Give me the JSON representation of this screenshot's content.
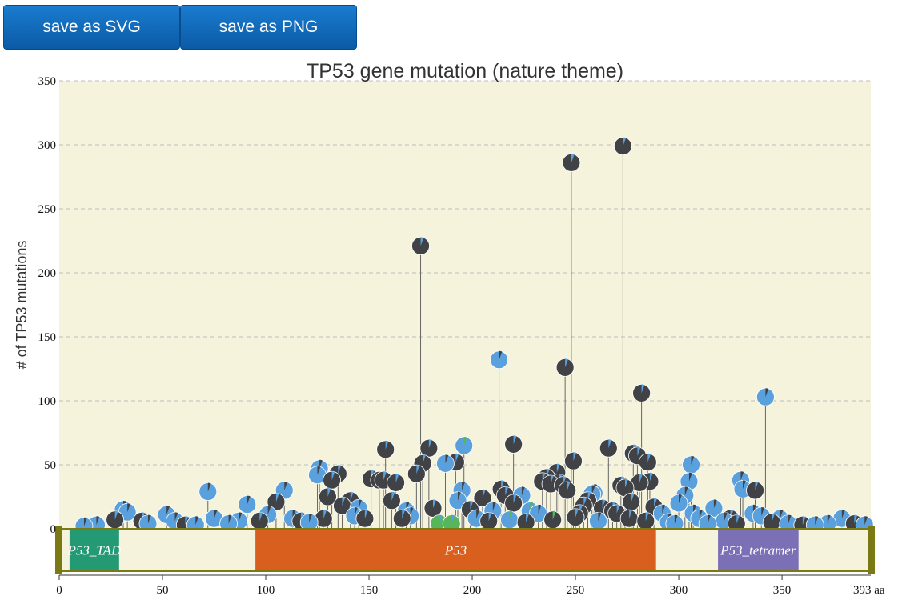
{
  "toolbar": {
    "save_svg_label": "save as SVG",
    "save_png_label": "save as PNG"
  },
  "colors": {
    "plot_background": "#f5f3dc",
    "grid": "#bdbdbd",
    "stem": "#666666",
    "lollipop_dark": "#414246",
    "lollipop_blue": "#5aa0dc",
    "lollipop_green": "#57b55b",
    "track_border": "#7a7a14",
    "track_fill": "#f5f3dc"
  },
  "chart_data": {
    "type": "lollipop",
    "title": "TP53 gene mutation (nature theme)",
    "ylabel": "# of TP53 mutations",
    "xlabel": "",
    "x_unit_label": "393 aa",
    "ylim": [
      0,
      350
    ],
    "xlim": [
      0,
      393
    ],
    "y_ticks": [
      "0",
      "50",
      "100",
      "150",
      "200",
      "250",
      "300",
      "350"
    ],
    "x_ticks": [
      "0",
      "50",
      "100",
      "150",
      "200",
      "250",
      "300",
      "350"
    ],
    "grid": true,
    "domains": [
      {
        "name": "P53_TAD",
        "start": 5,
        "end": 29,
        "color": "#239a74"
      },
      {
        "name": "P53",
        "start": 95,
        "end": 289,
        "color": "#d95f1e"
      },
      {
        "name": "P53_tetramer",
        "start": 319,
        "end": 358,
        "color": "#7b6fb5"
      }
    ],
    "mutations": [
      {
        "pos": 175,
        "count": 221,
        "color": "dark",
        "accent": "blue"
      },
      {
        "pos": 248,
        "count": 286,
        "color": "dark",
        "accent": "blue"
      },
      {
        "pos": 273,
        "count": 299,
        "color": "dark",
        "accent": "blue"
      },
      {
        "pos": 213,
        "count": 132,
        "color": "blue",
        "accent": "dark"
      },
      {
        "pos": 245,
        "count": 126,
        "color": "dark",
        "accent": "blue"
      },
      {
        "pos": 282,
        "count": 106,
        "color": "dark",
        "accent": "blue"
      },
      {
        "pos": 342,
        "count": 103,
        "color": "blue",
        "accent": "dark"
      },
      {
        "pos": 158,
        "count": 62,
        "color": "dark",
        "accent": "blue"
      },
      {
        "pos": 179,
        "count": 63,
        "color": "dark",
        "accent": "blue"
      },
      {
        "pos": 196,
        "count": 65,
        "color": "blue",
        "accent": "green"
      },
      {
        "pos": 220,
        "count": 66,
        "color": "dark",
        "accent": "blue"
      },
      {
        "pos": 266,
        "count": 63,
        "color": "dark",
        "accent": "blue"
      },
      {
        "pos": 249,
        "count": 53,
        "color": "dark",
        "accent": "blue"
      },
      {
        "pos": 176,
        "count": 51,
        "color": "dark",
        "accent": "blue"
      },
      {
        "pos": 187,
        "count": 51,
        "color": "blue",
        "accent": "dark"
      },
      {
        "pos": 192,
        "count": 52,
        "color": "dark",
        "accent": "blue"
      },
      {
        "pos": 278,
        "count": 59,
        "color": "dark",
        "accent": "blue"
      },
      {
        "pos": 280,
        "count": 57,
        "color": "dark",
        "accent": "blue"
      },
      {
        "pos": 285,
        "count": 52,
        "color": "dark",
        "accent": "blue"
      },
      {
        "pos": 306,
        "count": 50,
        "color": "blue",
        "accent": "dark"
      },
      {
        "pos": 126,
        "count": 47,
        "color": "blue",
        "accent": "dark"
      },
      {
        "pos": 125,
        "count": 42,
        "color": "blue",
        "accent": "dark"
      },
      {
        "pos": 132,
        "count": 38,
        "color": "dark",
        "accent": "blue"
      },
      {
        "pos": 135,
        "count": 43,
        "color": "dark",
        "accent": "blue"
      },
      {
        "pos": 141,
        "count": 22,
        "color": "dark",
        "accent": "blue"
      },
      {
        "pos": 151,
        "count": 39,
        "color": "dark",
        "accent": "blue"
      },
      {
        "pos": 155,
        "count": 38,
        "color": "dark",
        "accent": "blue"
      },
      {
        "pos": 157,
        "count": 38,
        "color": "dark",
        "accent": "blue"
      },
      {
        "pos": 163,
        "count": 36,
        "color": "dark",
        "accent": "blue"
      },
      {
        "pos": 173,
        "count": 43,
        "color": "dark",
        "accent": "blue"
      },
      {
        "pos": 193,
        "count": 22,
        "color": "blue",
        "accent": "dark"
      },
      {
        "pos": 195,
        "count": 30,
        "color": "blue",
        "accent": "dark"
      },
      {
        "pos": 205,
        "count": 24,
        "color": "dark",
        "accent": "blue"
      },
      {
        "pos": 214,
        "count": 31,
        "color": "dark",
        "accent": "blue"
      },
      {
        "pos": 216,
        "count": 26,
        "color": "dark",
        "accent": "blue"
      },
      {
        "pos": 220,
        "count": 20,
        "color": "dark",
        "accent": "blue"
      },
      {
        "pos": 224,
        "count": 26,
        "color": "blue",
        "accent": "dark"
      },
      {
        "pos": 234,
        "count": 37,
        "color": "dark",
        "accent": "blue"
      },
      {
        "pos": 236,
        "count": 40,
        "color": "dark",
        "accent": "blue"
      },
      {
        "pos": 238,
        "count": 35,
        "color": "dark",
        "accent": "blue"
      },
      {
        "pos": 241,
        "count": 44,
        "color": "dark",
        "accent": "blue"
      },
      {
        "pos": 242,
        "count": 36,
        "color": "dark",
        "accent": "blue"
      },
      {
        "pos": 244,
        "count": 34,
        "color": "dark",
        "accent": "blue"
      },
      {
        "pos": 246,
        "count": 30,
        "color": "dark",
        "accent": "blue"
      },
      {
        "pos": 258,
        "count": 27,
        "color": "blue",
        "accent": "dark"
      },
      {
        "pos": 259,
        "count": 28,
        "color": "blue",
        "accent": "dark"
      },
      {
        "pos": 272,
        "count": 34,
        "color": "dark",
        "accent": "blue"
      },
      {
        "pos": 274,
        "count": 32,
        "color": "dark",
        "accent": "blue"
      },
      {
        "pos": 277,
        "count": 21,
        "color": "dark",
        "accent": "blue"
      },
      {
        "pos": 281,
        "count": 36,
        "color": "dark",
        "accent": "blue"
      },
      {
        "pos": 286,
        "count": 37,
        "color": "dark",
        "accent": "blue"
      },
      {
        "pos": 288,
        "count": 17,
        "color": "dark",
        "accent": "blue"
      },
      {
        "pos": 300,
        "count": 20,
        "color": "blue",
        "accent": "dark"
      },
      {
        "pos": 303,
        "count": 26,
        "color": "blue",
        "accent": "dark"
      },
      {
        "pos": 305,
        "count": 37,
        "color": "blue",
        "accent": "dark"
      },
      {
        "pos": 307,
        "count": 12,
        "color": "blue",
        "accent": "dark"
      },
      {
        "pos": 317,
        "count": 16,
        "color": "blue",
        "accent": "dark"
      },
      {
        "pos": 330,
        "count": 38,
        "color": "blue",
        "accent": "dark"
      },
      {
        "pos": 331,
        "count": 31,
        "color": "blue",
        "accent": "dark"
      },
      {
        "pos": 337,
        "count": 30,
        "color": "dark",
        "accent": "blue"
      },
      {
        "pos": 72,
        "count": 29,
        "color": "blue",
        "accent": "dark"
      },
      {
        "pos": 109,
        "count": 30,
        "color": "blue",
        "accent": "dark"
      },
      {
        "pos": 105,
        "count": 21,
        "color": "dark",
        "accent": "blue"
      },
      {
        "pos": 91,
        "count": 19,
        "color": "blue",
        "accent": "dark"
      },
      {
        "pos": 130,
        "count": 25,
        "color": "dark",
        "accent": "blue"
      },
      {
        "pos": 137,
        "count": 18,
        "color": "dark",
        "accent": "blue"
      },
      {
        "pos": 145,
        "count": 16,
        "color": "blue",
        "accent": "dark"
      },
      {
        "pos": 161,
        "count": 22,
        "color": "dark",
        "accent": "blue"
      },
      {
        "pos": 168,
        "count": 14,
        "color": "blue",
        "accent": "dark"
      },
      {
        "pos": 181,
        "count": 16,
        "color": "dark",
        "accent": "blue"
      },
      {
        "pos": 199,
        "count": 15,
        "color": "dark",
        "accent": "blue"
      },
      {
        "pos": 210,
        "count": 14,
        "color": "blue",
        "accent": "dark"
      },
      {
        "pos": 228,
        "count": 14,
        "color": "blue",
        "accent": "green"
      },
      {
        "pos": 232,
        "count": 12,
        "color": "blue",
        "accent": "dark"
      },
      {
        "pos": 252,
        "count": 12,
        "color": "dark",
        "accent": "blue"
      },
      {
        "pos": 254,
        "count": 18,
        "color": "dark",
        "accent": "blue"
      },
      {
        "pos": 256,
        "count": 22,
        "color": "dark",
        "accent": "blue"
      },
      {
        "pos": 263,
        "count": 16,
        "color": "dark",
        "accent": "blue"
      },
      {
        "pos": 268,
        "count": 14,
        "color": "dark",
        "accent": "blue"
      },
      {
        "pos": 270,
        "count": 12,
        "color": "dark",
        "accent": "blue"
      },
      {
        "pos": 292,
        "count": 12,
        "color": "blue",
        "accent": "dark"
      },
      {
        "pos": 310,
        "count": 8,
        "color": "blue",
        "accent": "dark"
      },
      {
        "pos": 322,
        "count": 6,
        "color": "blue",
        "accent": "dark"
      },
      {
        "pos": 325,
        "count": 8,
        "color": "dark",
        "accent": "blue"
      },
      {
        "pos": 336,
        "count": 12,
        "color": "blue",
        "accent": "dark"
      },
      {
        "pos": 340,
        "count": 10,
        "color": "blue",
        "accent": "dark"
      },
      {
        "pos": 349,
        "count": 8,
        "color": "blue",
        "accent": "dark"
      },
      {
        "pos": 360,
        "count": 3,
        "color": "dark",
        "accent": "blue"
      },
      {
        "pos": 366,
        "count": 3,
        "color": "blue",
        "accent": "dark"
      },
      {
        "pos": 372,
        "count": 4,
        "color": "blue",
        "accent": "dark"
      },
      {
        "pos": 379,
        "count": 8,
        "color": "blue",
        "accent": "dark"
      },
      {
        "pos": 385,
        "count": 4,
        "color": "dark",
        "accent": "blue"
      },
      {
        "pos": 390,
        "count": 3,
        "color": "blue",
        "accent": "dark"
      },
      {
        "pos": 12,
        "count": 2,
        "color": "blue",
        "accent": "dark"
      },
      {
        "pos": 18,
        "count": 3,
        "color": "blue",
        "accent": "dark"
      },
      {
        "pos": 27,
        "count": 7,
        "color": "dark",
        "accent": "blue"
      },
      {
        "pos": 31,
        "count": 15,
        "color": "blue",
        "accent": "dark"
      },
      {
        "pos": 33,
        "count": 13,
        "color": "blue",
        "accent": "dark"
      },
      {
        "pos": 40,
        "count": 6,
        "color": "dark",
        "accent": "blue"
      },
      {
        "pos": 43,
        "count": 4,
        "color": "blue",
        "accent": "dark"
      },
      {
        "pos": 52,
        "count": 11,
        "color": "blue",
        "accent": "dark"
      },
      {
        "pos": 56,
        "count": 6,
        "color": "blue",
        "accent": "dark"
      },
      {
        "pos": 61,
        "count": 3,
        "color": "dark",
        "accent": "blue"
      },
      {
        "pos": 66,
        "count": 3,
        "color": "blue",
        "accent": "dark"
      },
      {
        "pos": 75,
        "count": 8,
        "color": "blue",
        "accent": "dark"
      },
      {
        "pos": 82,
        "count": 4,
        "color": "blue",
        "accent": "dark"
      },
      {
        "pos": 87,
        "count": 6,
        "color": "blue",
        "accent": "dark"
      },
      {
        "pos": 97,
        "count": 6,
        "color": "dark",
        "accent": "blue"
      },
      {
        "pos": 101,
        "count": 11,
        "color": "blue",
        "accent": "dark"
      },
      {
        "pos": 113,
        "count": 8,
        "color": "blue",
        "accent": "dark"
      },
      {
        "pos": 117,
        "count": 6,
        "color": "dark",
        "accent": "blue"
      },
      {
        "pos": 121,
        "count": 5,
        "color": "blue",
        "accent": "dark"
      },
      {
        "pos": 128,
        "count": 8,
        "color": "dark",
        "accent": "blue"
      },
      {
        "pos": 143,
        "count": 10,
        "color": "blue",
        "accent": "dark"
      },
      {
        "pos": 148,
        "count": 8,
        "color": "dark",
        "accent": "blue"
      },
      {
        "pos": 166,
        "count": 8,
        "color": "dark",
        "accent": "blue"
      },
      {
        "pos": 170,
        "count": 10,
        "color": "blue",
        "accent": "dark"
      },
      {
        "pos": 184,
        "count": 4,
        "color": "green",
        "accent": "blue"
      },
      {
        "pos": 190,
        "count": 4,
        "color": "green",
        "accent": "blue"
      },
      {
        "pos": 202,
        "count": 8,
        "color": "blue",
        "accent": "dark"
      },
      {
        "pos": 208,
        "count": 6,
        "color": "dark",
        "accent": "blue"
      },
      {
        "pos": 218,
        "count": 7,
        "color": "blue",
        "accent": "green"
      },
      {
        "pos": 226,
        "count": 5,
        "color": "dark",
        "accent": "blue"
      },
      {
        "pos": 239,
        "count": 7,
        "color": "dark",
        "accent": "green"
      },
      {
        "pos": 250,
        "count": 9,
        "color": "dark",
        "accent": "blue"
      },
      {
        "pos": 261,
        "count": 6,
        "color": "blue",
        "accent": "dark"
      },
      {
        "pos": 276,
        "count": 8,
        "color": "dark",
        "accent": "blue"
      },
      {
        "pos": 284,
        "count": 6,
        "color": "dark",
        "accent": "blue"
      },
      {
        "pos": 295,
        "count": 5,
        "color": "blue",
        "accent": "dark"
      },
      {
        "pos": 298,
        "count": 4,
        "color": "blue",
        "accent": "dark"
      },
      {
        "pos": 314,
        "count": 4,
        "color": "blue",
        "accent": "dark"
      },
      {
        "pos": 328,
        "count": 4,
        "color": "dark",
        "accent": "blue"
      },
      {
        "pos": 345,
        "count": 5,
        "color": "dark",
        "accent": "blue"
      },
      {
        "pos": 353,
        "count": 4,
        "color": "blue",
        "accent": "dark"
      }
    ]
  }
}
